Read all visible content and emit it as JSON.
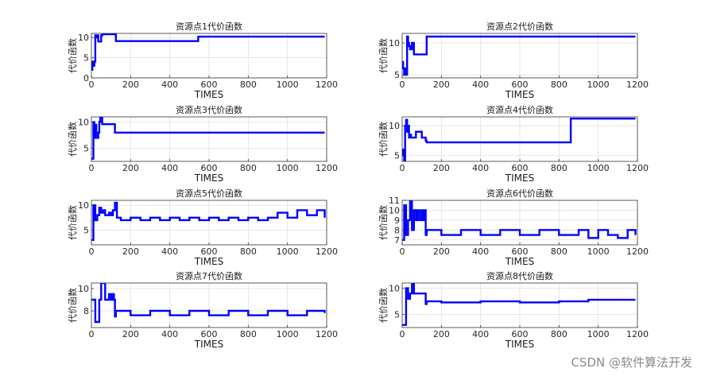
{
  "watermark": "CSDN @软件算法开发",
  "chart_data": [
    {
      "type": "line",
      "title": "资源点1代价函数",
      "xlabel": "TIMES",
      "ylabel": "代价函数",
      "xlim": [
        0,
        1200
      ],
      "ylim": [
        0,
        11
      ],
      "xticks": [
        0,
        200,
        400,
        600,
        800,
        1000,
        1200
      ],
      "yticks": [
        0,
        5,
        10
      ],
      "grid": true,
      "line_color": "#0000ff",
      "x": [
        0,
        5,
        10,
        15,
        20,
        25,
        30,
        35,
        40,
        45,
        50,
        55,
        60,
        65,
        70,
        120,
        125,
        540,
        545,
        1190
      ],
      "y": [
        2,
        4,
        3,
        4,
        10.5,
        10,
        10.5,
        9,
        9,
        9,
        10.5,
        10.8,
        10.8,
        10.8,
        10.8,
        10.8,
        9.1,
        9.1,
        10.2,
        10.2
      ]
    },
    {
      "type": "line",
      "title": "资源点2代价函数",
      "xlabel": "TIMES",
      "ylabel": "代价函数",
      "xlim": [
        0,
        1200
      ],
      "ylim": [
        4.5,
        11.5
      ],
      "xticks": [
        0,
        200,
        400,
        600,
        800,
        1000,
        1200
      ],
      "yticks": [
        5,
        10
      ],
      "grid": true,
      "line_color": "#0000ff",
      "x": [
        0,
        5,
        10,
        15,
        20,
        25,
        30,
        35,
        40,
        45,
        50,
        60,
        70,
        115,
        120,
        125,
        1190
      ],
      "y": [
        7,
        6,
        5,
        6,
        5,
        11,
        10,
        9.5,
        9,
        9,
        10,
        8.2,
        8.2,
        8.2,
        8.2,
        11,
        11
      ]
    },
    {
      "type": "line",
      "title": "资源点3代价函数",
      "xlabel": "TIMES",
      "ylabel": "代价函数",
      "xlim": [
        0,
        1200
      ],
      "ylim": [
        2.5,
        11
      ],
      "xticks": [
        0,
        200,
        400,
        600,
        800,
        1000,
        1200
      ],
      "yticks": [
        5,
        10
      ],
      "grid": true,
      "line_color": "#0000ff",
      "x": [
        0,
        5,
        10,
        15,
        20,
        25,
        30,
        35,
        40,
        45,
        50,
        55,
        60,
        70,
        80,
        115,
        120,
        125,
        1190
      ],
      "y": [
        3,
        3,
        10,
        7,
        9.5,
        8,
        7,
        8,
        10,
        11,
        11,
        9.6,
        9.6,
        9.6,
        9.6,
        9.6,
        8,
        8,
        8
      ]
    },
    {
      "type": "line",
      "title": "资源点4代价函数",
      "xlabel": "TIMES",
      "ylabel": "代价函数",
      "xlim": [
        0,
        1200
      ],
      "ylim": [
        4,
        11.5
      ],
      "xticks": [
        0,
        200,
        400,
        600,
        800,
        1000,
        1200
      ],
      "yticks": [
        5,
        10
      ],
      "grid": true,
      "line_color": "#0000ff",
      "x": [
        0,
        5,
        10,
        15,
        20,
        25,
        30,
        35,
        40,
        45,
        50,
        60,
        70,
        80,
        100,
        115,
        120,
        125,
        855,
        860,
        1190
      ],
      "y": [
        5,
        6,
        4,
        10,
        11,
        9,
        10,
        8,
        8.5,
        8,
        8,
        8,
        9,
        9,
        8,
        8,
        7.5,
        7.2,
        7.2,
        11.2,
        11.2
      ]
    },
    {
      "type": "line",
      "title": "资源点5代价函数",
      "xlabel": "TIMES",
      "ylabel": "代价函数",
      "xlim": [
        0,
        1200
      ],
      "ylim": [
        2,
        11
      ],
      "xticks": [
        0,
        200,
        400,
        600,
        800,
        1000,
        1200
      ],
      "yticks": [
        5,
        10
      ],
      "grid": true,
      "line_color": "#0000ff",
      "x": [
        0,
        10,
        20,
        30,
        40,
        50,
        60,
        70,
        80,
        90,
        100,
        110,
        120,
        130,
        150,
        200,
        250,
        300,
        350,
        400,
        450,
        500,
        550,
        600,
        650,
        700,
        750,
        800,
        850,
        900,
        950,
        1000,
        1050,
        1100,
        1150,
        1190
      ],
      "y": [
        3,
        10,
        7,
        8,
        9.5,
        8.5,
        9,
        8,
        8,
        8.5,
        8,
        9,
        10.5,
        7.5,
        7,
        7.5,
        7,
        7.5,
        7,
        7.5,
        7,
        7.5,
        7,
        7.5,
        7,
        7.5,
        7,
        7.5,
        7,
        7.5,
        8.5,
        7.5,
        9,
        8,
        9,
        7.5
      ]
    },
    {
      "type": "line",
      "title": "资源点6代价函数",
      "xlabel": "TIMES",
      "ylabel": "代价函数",
      "xlim": [
        0,
        1200
      ],
      "ylim": [
        6.5,
        11
      ],
      "xticks": [
        0,
        200,
        400,
        600,
        800,
        1000,
        1200
      ],
      "yticks": [
        7,
        8,
        9,
        10,
        11
      ],
      "grid": true,
      "line_color": "#0000ff",
      "x": [
        0,
        10,
        20,
        30,
        40,
        50,
        60,
        70,
        80,
        90,
        100,
        110,
        115,
        120,
        125,
        200,
        300,
        400,
        500,
        600,
        700,
        800,
        900,
        950,
        1000,
        1050,
        1100,
        1150,
        1190
      ],
      "y": [
        7,
        10.5,
        7.5,
        9,
        11,
        8,
        10,
        9,
        10,
        9,
        10,
        9,
        10,
        7.5,
        8,
        7.5,
        8,
        7.5,
        8,
        7.5,
        8,
        7.5,
        8,
        7.2,
        8,
        7.5,
        7.2,
        8,
        7.5
      ]
    },
    {
      "type": "line",
      "title": "资源点7代价函数",
      "xlabel": "TIMES",
      "ylabel": "代价函数",
      "xlim": [
        0,
        1200
      ],
      "ylim": [
        6.5,
        10.5
      ],
      "xticks": [
        0,
        200,
        400,
        600,
        800,
        1000,
        1200
      ],
      "yticks": [
        8,
        10
      ],
      "grid": true,
      "line_color": "#0000ff",
      "x": [
        0,
        10,
        20,
        30,
        40,
        50,
        60,
        70,
        80,
        90,
        100,
        110,
        115,
        120,
        125,
        200,
        300,
        400,
        500,
        600,
        700,
        800,
        900,
        1000,
        1100,
        1190
      ],
      "y": [
        9,
        9,
        7,
        7,
        9,
        10.5,
        10.5,
        9,
        9,
        9.5,
        9,
        9.5,
        9,
        7.5,
        8,
        7.6,
        8,
        7.6,
        8,
        7.6,
        8,
        7.6,
        8,
        7.6,
        8,
        7.8
      ]
    },
    {
      "type": "line",
      "title": "资源点8代价函数",
      "xlabel": "TIMES",
      "ylabel": "代价函数",
      "xlim": [
        0,
        1200
      ],
      "ylim": [
        2.5,
        11
      ],
      "xticks": [
        0,
        200,
        400,
        600,
        800,
        1000,
        1200
      ],
      "yticks": [
        5,
        10
      ],
      "grid": true,
      "line_color": "#0000ff",
      "x": [
        0,
        10,
        20,
        30,
        40,
        50,
        60,
        70,
        80,
        90,
        100,
        110,
        115,
        120,
        125,
        200,
        400,
        600,
        800,
        900,
        950,
        960,
        1190
      ],
      "y": [
        3,
        3,
        10,
        8,
        9,
        11,
        9,
        9,
        9,
        9,
        9,
        9,
        9,
        7,
        7.5,
        7.3,
        7.5,
        7.3,
        7.5,
        7.5,
        7.8,
        7.8,
        7.8
      ]
    }
  ]
}
